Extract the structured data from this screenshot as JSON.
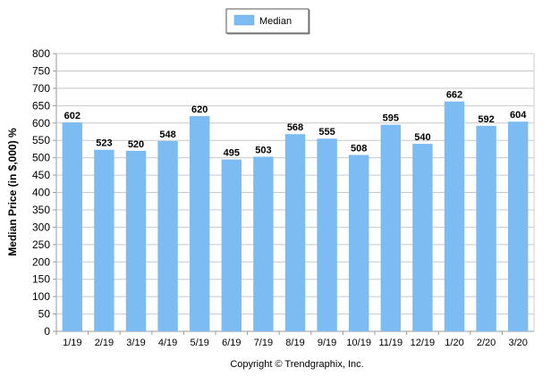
{
  "chart_data": {
    "type": "bar",
    "title": "",
    "xlabel": "",
    "ylabel": "Median Price (in $,000) %",
    "categories": [
      "1/19",
      "2/19",
      "3/19",
      "4/19",
      "5/19",
      "6/19",
      "7/19",
      "8/19",
      "9/19",
      "10/19",
      "11/19",
      "12/19",
      "1/20",
      "2/20",
      "3/20"
    ],
    "series": [
      {
        "name": "Median",
        "color": "#7cbcf2",
        "values": [
          602,
          523,
          520,
          548,
          620,
          495,
          503,
          568,
          555,
          508,
          595,
          540,
          662,
          592,
          604
        ]
      }
    ],
    "ylim": [
      0,
      800
    ],
    "ytick_step": 50,
    "grid": true,
    "legend_position": "top-center",
    "footer": "Copyright © Trendgraphix, Inc."
  }
}
